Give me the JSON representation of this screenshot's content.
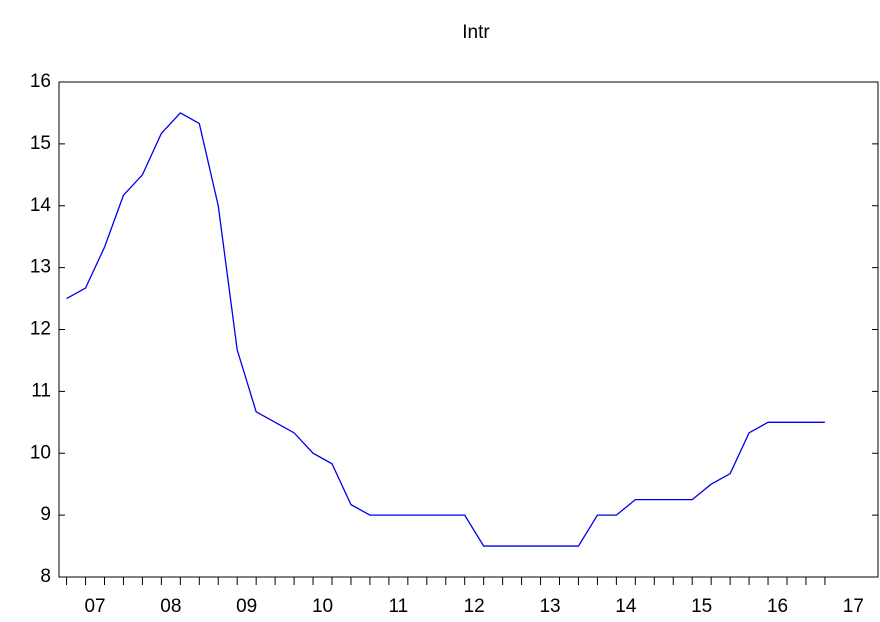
{
  "chart_data": {
    "type": "line",
    "title": "Intr",
    "x": [
      2007,
      2007.25,
      2007.5,
      2007.75,
      2008,
      2008.25,
      2008.5,
      2008.75,
      2009,
      2009.25,
      2009.5,
      2009.75,
      2010,
      2010.25,
      2010.5,
      2010.75,
      2011,
      2011.25,
      2011.5,
      2011.75,
      2012,
      2012.25,
      2012.5,
      2012.75,
      2013,
      2013.25,
      2013.5,
      2013.75,
      2014,
      2014.25,
      2014.5,
      2014.75,
      2015,
      2015.25,
      2015.5,
      2015.75,
      2016,
      2016.25,
      2016.5,
      2016.75,
      2017
    ],
    "series": [
      {
        "name": "Intr",
        "color": "#0000ee",
        "values": [
          12.5,
          12.67,
          13.33,
          14.17,
          14.5,
          15.17,
          15.5,
          15.33,
          14.0,
          11.67,
          10.67,
          10.5,
          10.33,
          10.0,
          9.83,
          9.17,
          9.0,
          9.0,
          9.0,
          9.0,
          9.0,
          9.0,
          8.5,
          8.5,
          8.5,
          8.5,
          8.5,
          8.5,
          9.0,
          9.0,
          9.25,
          9.25,
          9.25,
          9.25,
          9.5,
          9.67,
          10.33,
          10.5,
          10.5,
          10.5,
          10.5
        ]
      }
    ],
    "xlim": [
      2006.9,
      2017.7
    ],
    "xticks": [
      {
        "value": 2007.375,
        "label": "07"
      },
      {
        "value": 2008.375,
        "label": "08"
      },
      {
        "value": 2009.375,
        "label": "09"
      },
      {
        "value": 2010.375,
        "label": "10"
      },
      {
        "value": 2011.375,
        "label": "11"
      },
      {
        "value": 2012.375,
        "label": "12"
      },
      {
        "value": 2013.375,
        "label": "13"
      },
      {
        "value": 2014.375,
        "label": "14"
      },
      {
        "value": 2015.375,
        "label": "15"
      },
      {
        "value": 2016.375,
        "label": "16"
      },
      {
        "value": 2017.375,
        "label": "17"
      }
    ],
    "ylim": [
      8,
      16
    ],
    "yticks": [
      8,
      9,
      10,
      11,
      12,
      13,
      14,
      15,
      16
    ],
    "grid": false
  }
}
